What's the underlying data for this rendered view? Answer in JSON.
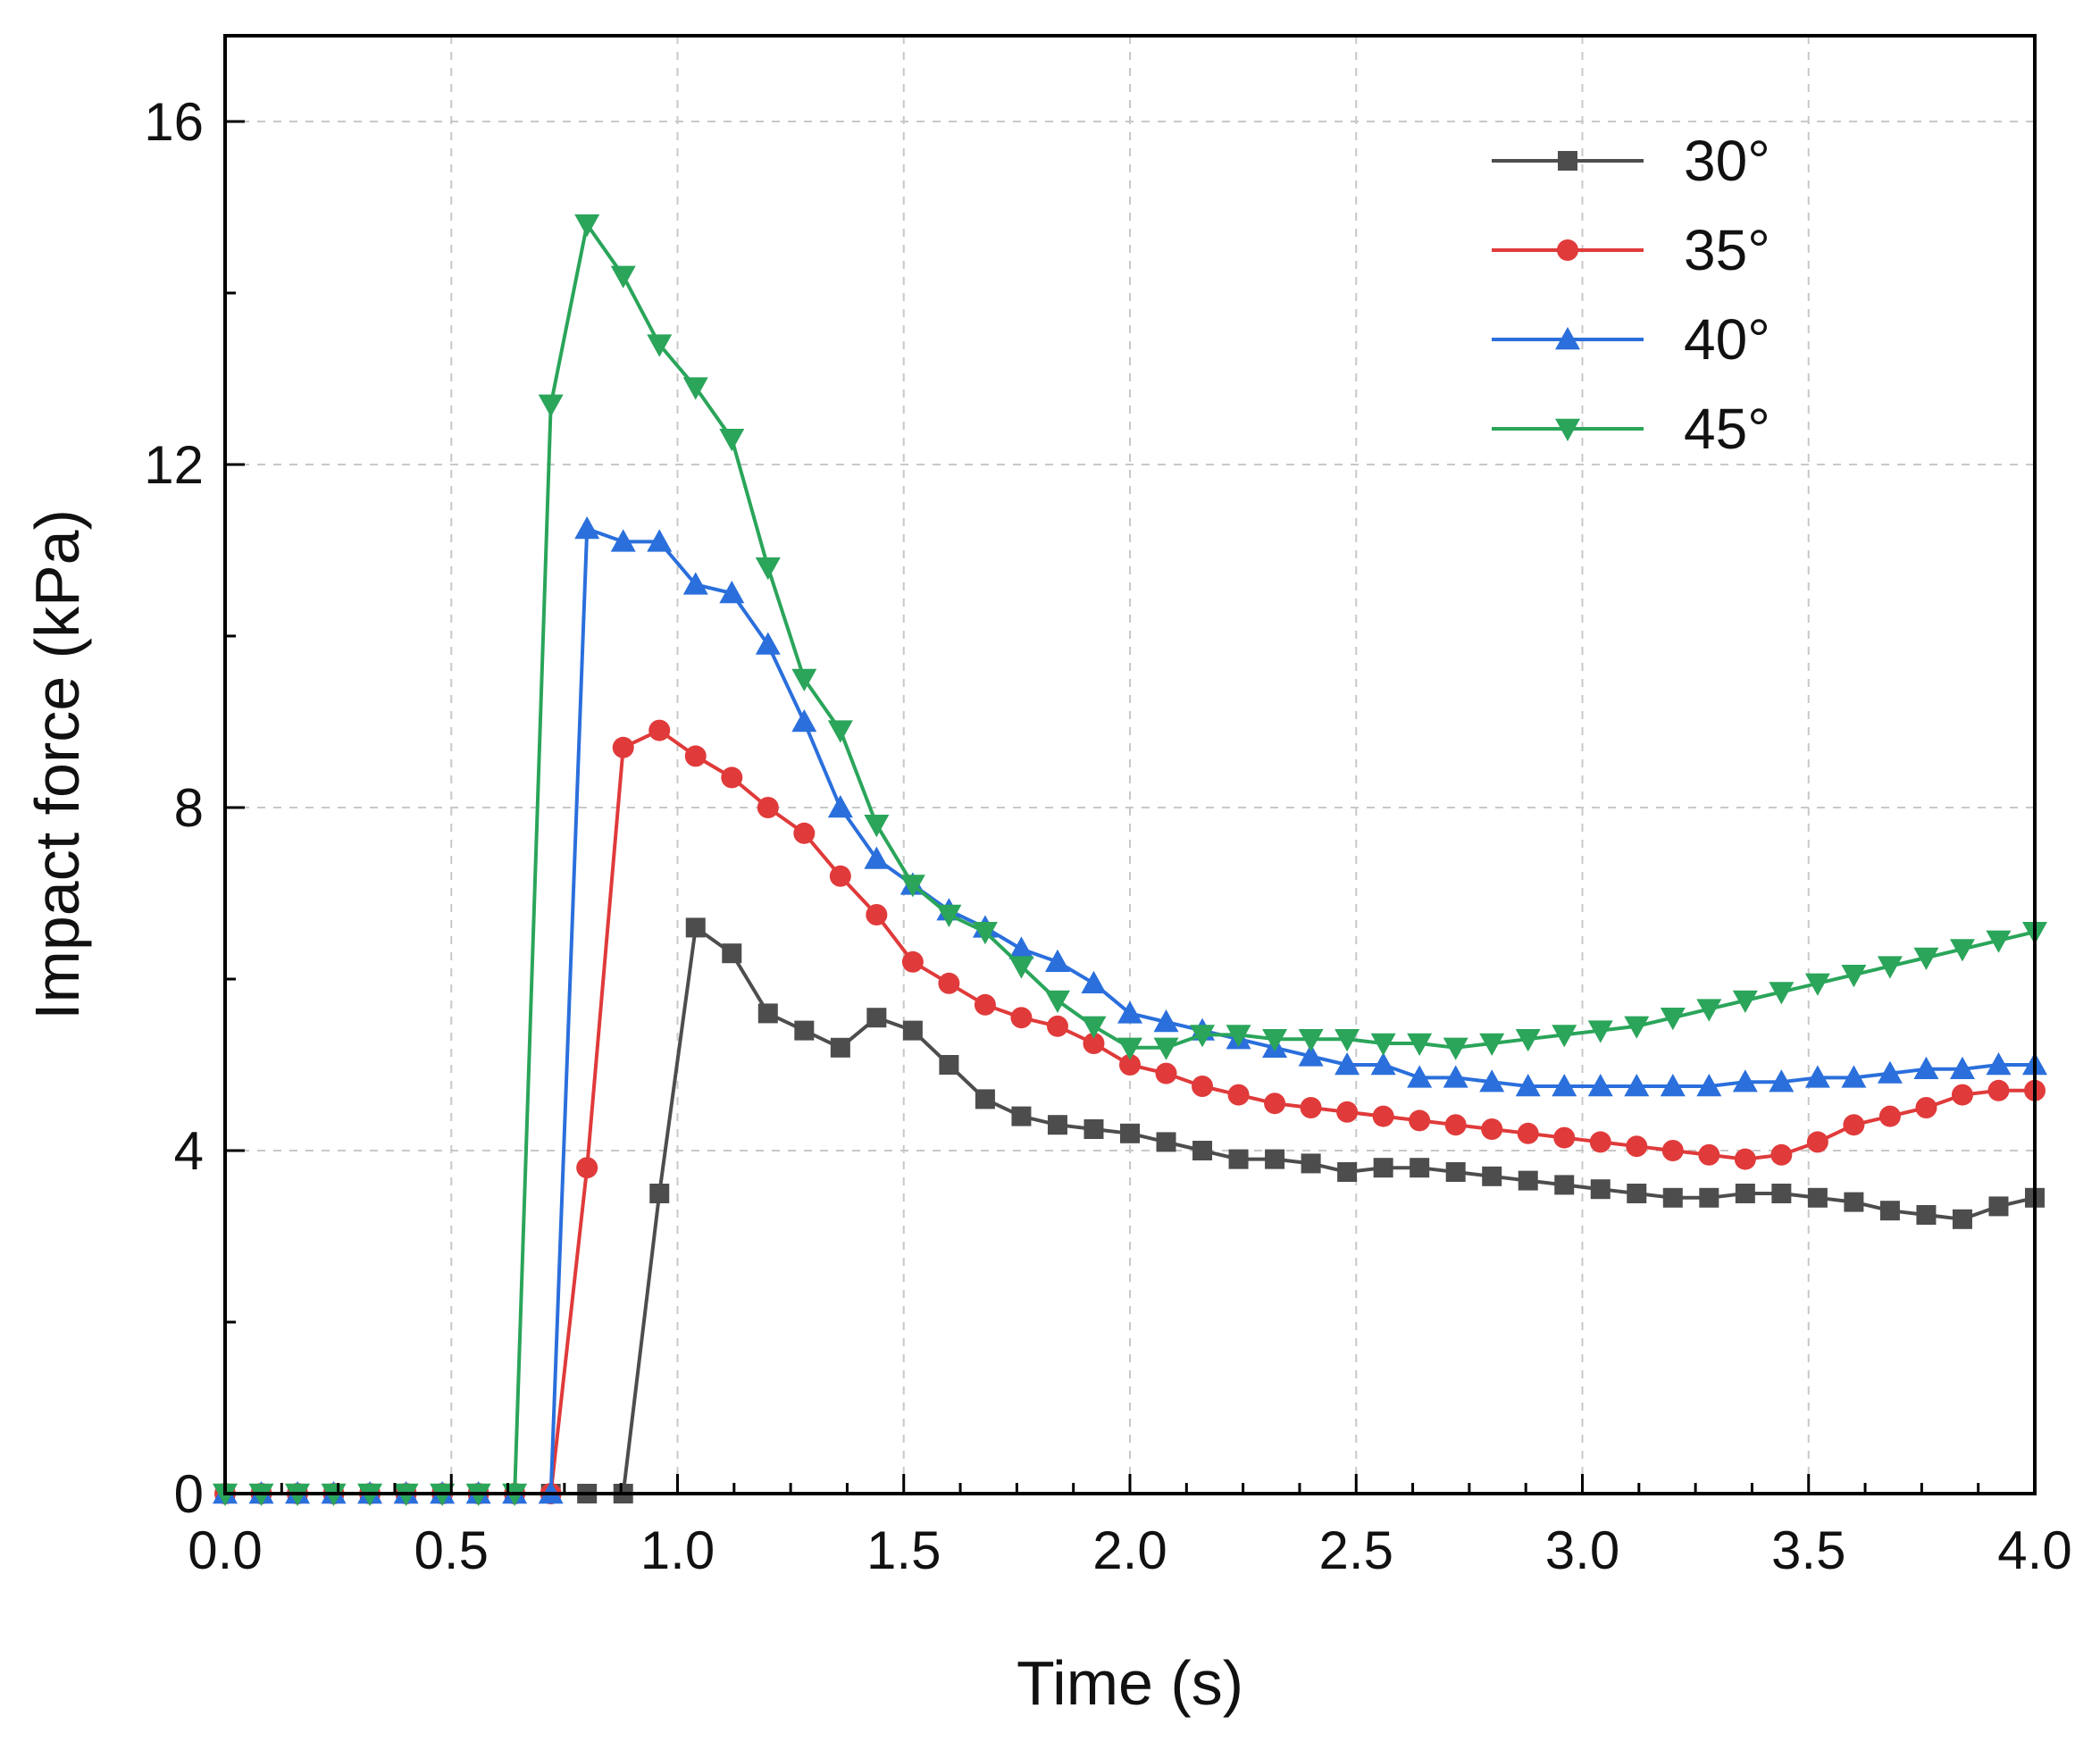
{
  "chart_data": {
    "type": "line",
    "xlabel": "Time (s)",
    "ylabel": "Impact force (kPa)",
    "xlim": [
      0,
      4
    ],
    "ylim": [
      0,
      17
    ],
    "grid": true,
    "legend_position": "top-right",
    "x_ticks": [
      0.0,
      0.5,
      1.0,
      1.5,
      2.0,
      2.5,
      3.0,
      3.5,
      4.0
    ],
    "x_tick_labels": [
      "0.0",
      "0.5",
      "1.0",
      "1.5",
      "2.0",
      "2.5",
      "3.0",
      "3.5",
      "4.0"
    ],
    "y_ticks": [
      0,
      4,
      8,
      12,
      16
    ],
    "y_tick_labels": [
      "0",
      "4",
      "8",
      "12",
      "16"
    ],
    "x": [
      0.0,
      0.08,
      0.16,
      0.24,
      0.32,
      0.4,
      0.48,
      0.56,
      0.64,
      0.72,
      0.8,
      0.88,
      0.96,
      1.04,
      1.12,
      1.2,
      1.28,
      1.36,
      1.44,
      1.52,
      1.6,
      1.68,
      1.76,
      1.84,
      1.92,
      2.0,
      2.08,
      2.16,
      2.24,
      2.32,
      2.4,
      2.48,
      2.56,
      2.64,
      2.72,
      2.8,
      2.88,
      2.96,
      3.04,
      3.12,
      3.2,
      3.28,
      3.36,
      3.44,
      3.52,
      3.6,
      3.68,
      3.76,
      3.84,
      3.92,
      4.0
    ],
    "series": [
      {
        "name": "30°",
        "color": "#4d4d4d",
        "marker": "square",
        "values": [
          0,
          0,
          0,
          0,
          0,
          0,
          0,
          0,
          0,
          0,
          0,
          0,
          3.5,
          6.6,
          6.3,
          5.6,
          5.4,
          5.2,
          5.55,
          5.4,
          5.0,
          4.6,
          4.4,
          4.3,
          4.25,
          4.2,
          4.1,
          4.0,
          3.9,
          3.9,
          3.85,
          3.75,
          3.8,
          3.8,
          3.75,
          3.7,
          3.65,
          3.6,
          3.55,
          3.5,
          3.45,
          3.45,
          3.5,
          3.5,
          3.45,
          3.4,
          3.3,
          3.25,
          3.2,
          3.35,
          3.45
        ]
      },
      {
        "name": "35°",
        "color": "#e03a3a",
        "marker": "circle",
        "values": [
          0,
          0,
          0,
          0,
          0,
          0,
          0,
          0,
          0,
          0,
          3.8,
          8.7,
          8.9,
          8.6,
          8.35,
          8.0,
          7.7,
          7.2,
          6.75,
          6.2,
          5.95,
          5.7,
          5.55,
          5.45,
          5.25,
          5.0,
          4.9,
          4.75,
          4.65,
          4.55,
          4.5,
          4.45,
          4.4,
          4.35,
          4.3,
          4.25,
          4.2,
          4.15,
          4.1,
          4.05,
          4.0,
          3.95,
          3.9,
          3.95,
          4.1,
          4.3,
          4.4,
          4.5,
          4.65,
          4.7,
          4.7
        ]
      },
      {
        "name": "40°",
        "color": "#2a6fdc",
        "marker": "triangle-up",
        "values": [
          0,
          0,
          0,
          0,
          0,
          0,
          0,
          0,
          0,
          0,
          11.25,
          11.1,
          11.1,
          10.6,
          10.5,
          9.9,
          9.0,
          8.0,
          7.4,
          7.1,
          6.8,
          6.6,
          6.35,
          6.2,
          5.95,
          5.6,
          5.5,
          5.4,
          5.3,
          5.2,
          5.1,
          5.0,
          5.0,
          4.85,
          4.85,
          4.8,
          4.75,
          4.75,
          4.75,
          4.75,
          4.75,
          4.75,
          4.8,
          4.8,
          4.85,
          4.85,
          4.9,
          4.95,
          4.95,
          5.0,
          5.0
        ]
      },
      {
        "name": "45°",
        "color": "#2aa55a",
        "marker": "triangle-down",
        "values": [
          0,
          0,
          0,
          0,
          0,
          0,
          0,
          0,
          0,
          12.7,
          14.8,
          14.2,
          13.4,
          12.9,
          12.3,
          10.8,
          9.5,
          8.9,
          7.8,
          7.1,
          6.75,
          6.55,
          6.15,
          5.75,
          5.45,
          5.2,
          5.2,
          5.35,
          5.35,
          5.3,
          5.3,
          5.3,
          5.25,
          5.25,
          5.2,
          5.25,
          5.3,
          5.35,
          5.4,
          5.45,
          5.55,
          5.65,
          5.75,
          5.85,
          5.95,
          6.05,
          6.15,
          6.25,
          6.35,
          6.45,
          6.55
        ]
      }
    ]
  }
}
